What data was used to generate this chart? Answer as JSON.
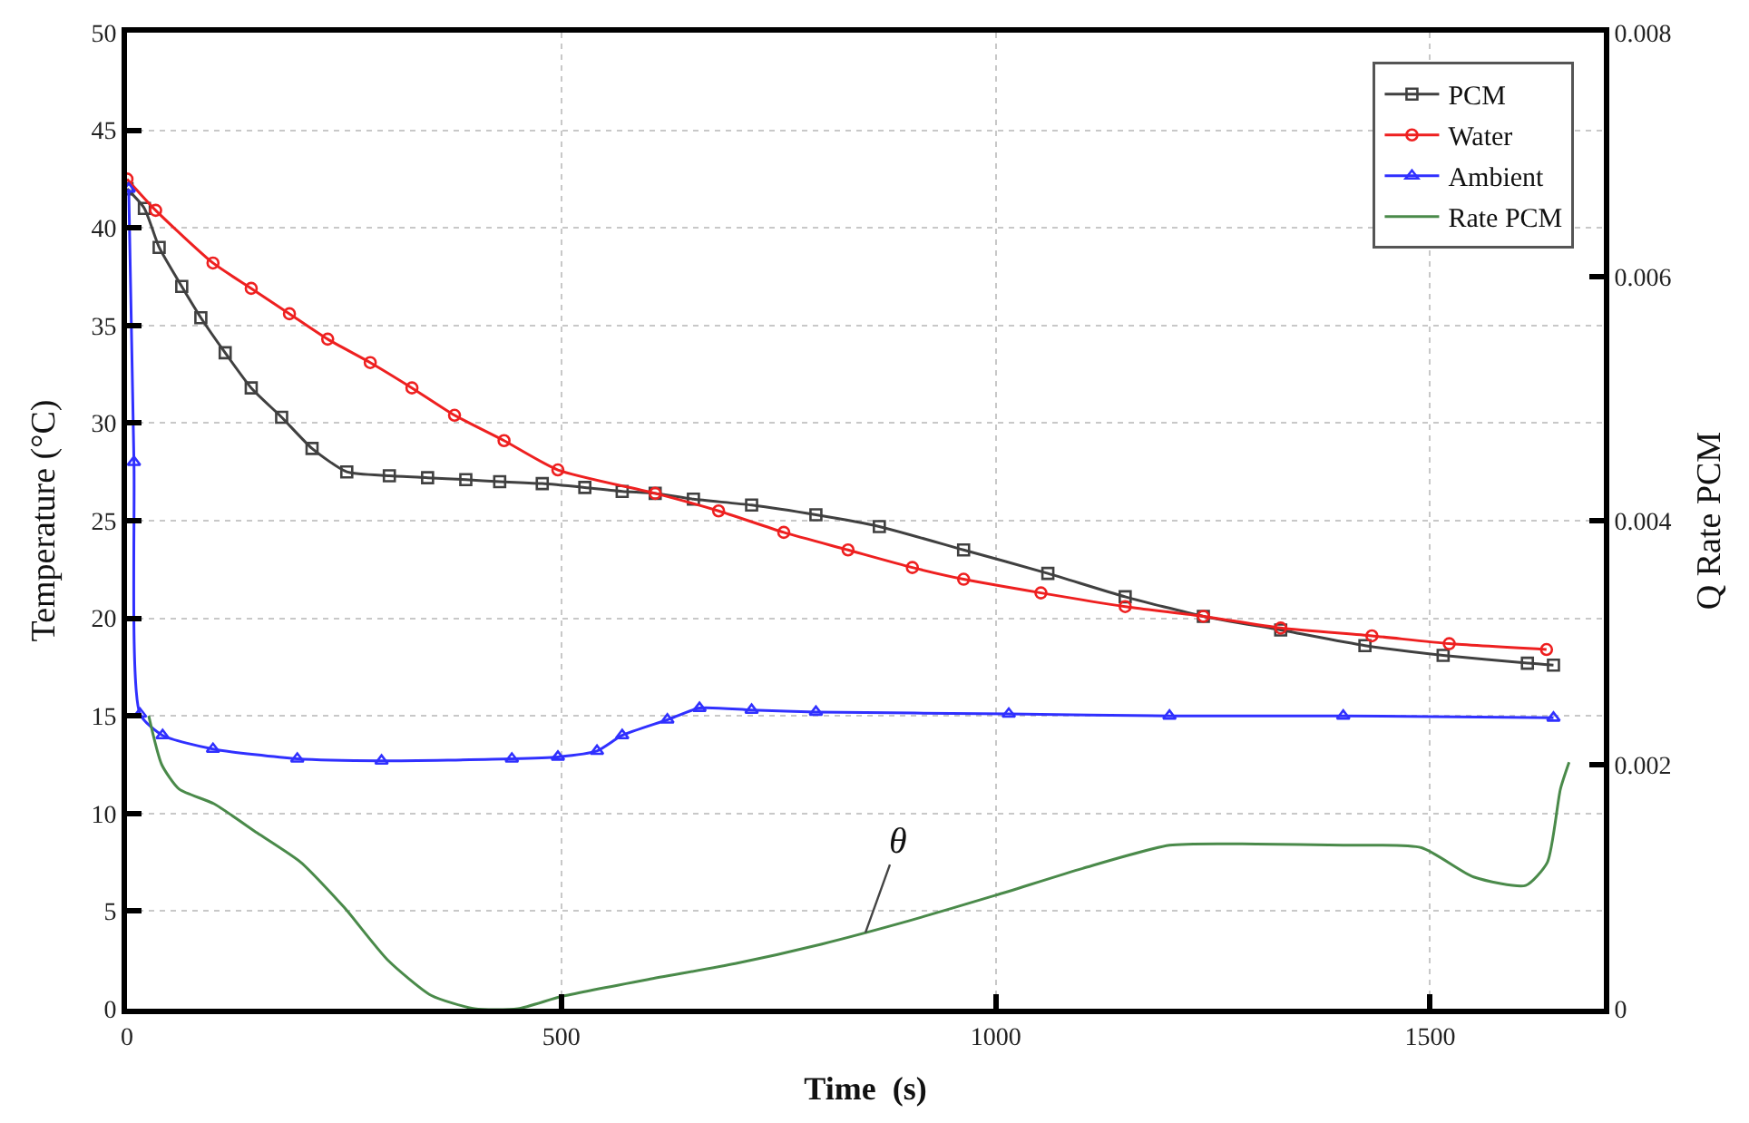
{
  "chart_data": {
    "type": "line",
    "xlabel": "Time  (s)",
    "ylabel": "Temperature (°C)",
    "y2label": "Q Rate PCM",
    "xlim": [
      0,
      1700
    ],
    "xticks": [
      0,
      500,
      1000,
      1500
    ],
    "ylim": [
      0,
      50
    ],
    "yticks": [
      0,
      5,
      10,
      15,
      20,
      25,
      30,
      35,
      40,
      45,
      50
    ],
    "y2lim": [
      0,
      0.008
    ],
    "y2ticks": [
      0,
      0.002,
      0.004,
      0.006,
      0.008
    ],
    "grid": true,
    "legend": "top right",
    "line_style": "solid",
    "annotations": [
      {
        "text": "θ",
        "x": 850,
        "y": 3.9
      }
    ],
    "series": [
      {
        "name": "PCM",
        "color": "#404040",
        "marker": "square",
        "x": [
          0,
          20,
          37,
          63,
          85,
          113,
          143,
          178,
          213,
          253,
          302,
          346,
          390,
          429,
          478,
          527,
          570,
          608,
          652,
          719,
          793,
          866,
          963,
          1060,
          1149,
          1239,
          1328,
          1425,
          1515,
          1612,
          1642
        ],
        "values": [
          42,
          41,
          39,
          37,
          35.4,
          33.6,
          31.8,
          30.3,
          28.7,
          27.5,
          27.3,
          27.2,
          27.1,
          27,
          26.9,
          26.7,
          26.5,
          26.4,
          26.1,
          25.8,
          25.3,
          24.7,
          23.5,
          22.3,
          21.1,
          20.1,
          19.4,
          18.6,
          18.1,
          17.7,
          17.6
        ]
      },
      {
        "name": "Water",
        "color": "#ee2020",
        "marker": "circle",
        "x": [
          0,
          33,
          99,
          143,
          187,
          231,
          280,
          328,
          377,
          434,
          496,
          608,
          681,
          756,
          830,
          904,
          963,
          1052,
          1149,
          1239,
          1328,
          1433,
          1522,
          1634
        ],
        "values": [
          42.5,
          40.9,
          38.2,
          36.9,
          35.6,
          34.3,
          33.1,
          31.8,
          30.4,
          29.1,
          27.6,
          26.4,
          25.5,
          24.4,
          23.5,
          22.6,
          22,
          21.3,
          20.6,
          20.1,
          19.5,
          19.1,
          18.7,
          18.4
        ]
      },
      {
        "name": "Ambient",
        "color": "#3030ff",
        "marker": "triangle",
        "x": [
          2,
          8,
          15,
          41,
          99,
          196,
          293,
          443,
          496,
          541,
          570,
          622,
          659,
          719,
          793,
          1015,
          1200,
          1400,
          1642
        ],
        "values": [
          42,
          28,
          15.1,
          14,
          13.3,
          12.8,
          12.7,
          12.8,
          12.9,
          13.2,
          14,
          14.8,
          15.4,
          15.3,
          15.2,
          15.1,
          15,
          15,
          14.9
        ]
      },
      {
        "name": "Rate PCM",
        "color": "#4a8a4a",
        "marker": "none",
        "axis": "y2",
        "x": [
          25,
          40,
          60,
          100,
          150,
          200,
          250,
          300,
          350,
          400,
          450,
          500,
          600,
          700,
          800,
          900,
          1000,
          1100,
          1200,
          1300,
          1400,
          1490,
          1550,
          1610,
          1635,
          1650,
          1660
        ],
        "values": [
          0.0024,
          0.002,
          0.0018,
          0.00168,
          0.00144,
          0.0012,
          0.00083,
          0.0004,
          0.00011,
          0,
          0,
          0.0001,
          0.00024,
          0.00037,
          0.00053,
          0.00072,
          0.00093,
          0.00115,
          0.00134,
          0.00135,
          0.00134,
          0.00132,
          0.00108,
          0.00101,
          0.0012,
          0.0018,
          0.00202
        ]
      }
    ]
  }
}
